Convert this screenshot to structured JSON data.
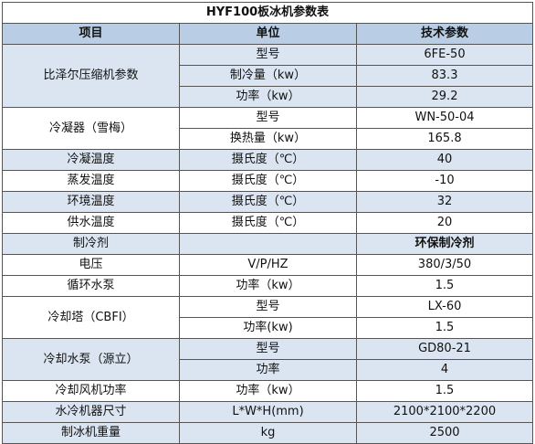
{
  "title": "HYF100板冰机参数表",
  "headers": {
    "item": "项目",
    "unit": "单位",
    "param": "技术参数"
  },
  "rows": {
    "compressor": {
      "item": "比泽尔压缩机参数",
      "sub": [
        {
          "unit": "型号",
          "value": "6FE-50"
        },
        {
          "unit": "制冷量（kw）",
          "value": "83.3"
        },
        {
          "unit": "功率（kw）",
          "value": "29.2"
        }
      ]
    },
    "condenser": {
      "item": "冷凝器（雪梅）",
      "sub": [
        {
          "unit": "型号",
          "value": "WN-50-04"
        },
        {
          "unit": "换热量（kw）",
          "value": "165.8"
        }
      ]
    },
    "cond_temp": {
      "item": "冷凝温度",
      "unit": "摄氏度（℃）",
      "value": "40"
    },
    "evap_temp": {
      "item": "蒸发温度",
      "unit": "摄氏度（℃）",
      "value": "-10"
    },
    "env_temp": {
      "item": "环境温度",
      "unit": "摄氏度（℃）",
      "value": "32"
    },
    "supply_temp": {
      "item": "供水温度",
      "unit": "摄氏度（℃）",
      "value": "20"
    },
    "refrigerant": {
      "item": "制冷剂",
      "unit": "",
      "value": "环保制冷剂"
    },
    "voltage": {
      "item": "电压",
      "unit": "V/P/HZ",
      "value": "380/3/50"
    },
    "circ_pump": {
      "item": "循环水泵",
      "unit": "功率（kw）",
      "value": "1.5"
    },
    "cooling_tower": {
      "item": "冷却塔（CBFI）",
      "sub": [
        {
          "unit": "型号",
          "value": "LX-60"
        },
        {
          "unit": "功率(kw)",
          "value": "1.5"
        }
      ]
    },
    "cooling_pump": {
      "item": "冷却水泵（源立）",
      "sub": [
        {
          "unit": "型号",
          "value": "GD80-21"
        },
        {
          "unit": "功率",
          "value": "4"
        }
      ]
    },
    "fan_power": {
      "item": "冷却风机功率",
      "unit": "功率（kw）",
      "value": "1.5"
    },
    "dimensions": {
      "item": "水冷机器尺寸",
      "unit": "L*W*H(mm)",
      "value": "2100*2100*2200"
    },
    "weight": {
      "item": "制冰机重量",
      "unit": "kg",
      "value": "2500"
    }
  }
}
